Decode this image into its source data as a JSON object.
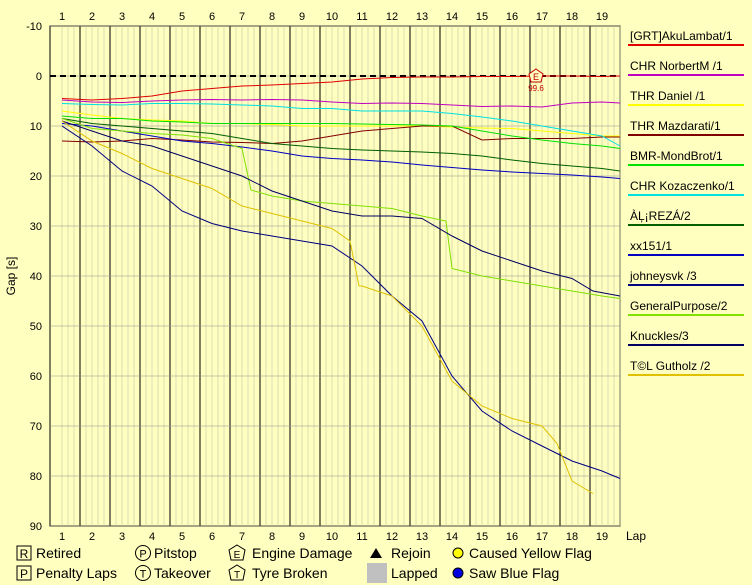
{
  "chart_data": {
    "type": "line",
    "ylabel": "Gap [s]",
    "xlabel": "Lap",
    "x_ticks": [
      1,
      2,
      3,
      4,
      5,
      6,
      7,
      8,
      9,
      10,
      11,
      12,
      13,
      14,
      15,
      16,
      17,
      18,
      19
    ],
    "ylim": [
      -10,
      90
    ],
    "y_ticks": [
      -10,
      0,
      10,
      20,
      30,
      40,
      50,
      60,
      70,
      80,
      90
    ],
    "grid": true,
    "legend_position": "right",
    "series": [
      {
        "name": "[GRT]AkuLambat/1",
        "color": "#e00000",
        "points": [
          [
            1,
            4.5
          ],
          [
            2,
            4.8
          ],
          [
            3,
            4.5
          ],
          [
            4,
            4
          ],
          [
            5,
            3
          ],
          [
            6,
            2.5
          ],
          [
            7,
            2
          ],
          [
            8,
            1.8
          ],
          [
            9,
            1.5
          ],
          [
            10,
            1.2
          ],
          [
            11,
            0.6
          ],
          [
            12,
            0.3
          ],
          [
            13,
            0.2
          ],
          [
            14,
            0.2
          ],
          [
            15,
            0.1
          ],
          [
            16,
            0.1
          ],
          [
            17,
            0
          ],
          [
            18,
            0
          ],
          [
            19,
            0.1
          ],
          [
            19.6,
            0
          ]
        ]
      },
      {
        "name": "CHR NorbertM /1",
        "color": "#c000c0",
        "points": [
          [
            1,
            4.8
          ],
          [
            2,
            5.2
          ],
          [
            3,
            5.3
          ],
          [
            4,
            5
          ],
          [
            5,
            4.8
          ],
          [
            6,
            4.7
          ],
          [
            7,
            4.8
          ],
          [
            8,
            4.7
          ],
          [
            9,
            4.8
          ],
          [
            10,
            5.2
          ],
          [
            11,
            5.5
          ],
          [
            12,
            5.4
          ],
          [
            13,
            5.5
          ],
          [
            14,
            5.8
          ],
          [
            15,
            6.1
          ],
          [
            16,
            6
          ],
          [
            17,
            6.2
          ],
          [
            18,
            5.4
          ],
          [
            19,
            5.2
          ],
          [
            19.6,
            5.4
          ]
        ]
      },
      {
        "name": "THR Daniel /1",
        "color": "#ffff00",
        "points": [
          [
            1,
            7
          ],
          [
            2,
            7.8
          ],
          [
            3,
            8.5
          ],
          [
            4,
            8.8
          ],
          [
            5,
            9
          ],
          [
            6,
            9.5
          ],
          [
            7,
            9.5
          ],
          [
            8,
            9.7
          ],
          [
            9,
            10
          ],
          [
            10,
            10
          ],
          [
            11,
            10
          ],
          [
            12,
            10
          ],
          [
            13,
            10
          ],
          [
            14,
            10.2
          ],
          [
            15,
            10.4
          ],
          [
            16,
            10.5
          ],
          [
            17,
            11
          ],
          [
            18,
            11.5
          ],
          [
            19,
            12
          ],
          [
            19.6,
            12
          ]
        ]
      },
      {
        "name": "THR Mazdarati/1",
        "color": "#800000",
        "points": [
          [
            1,
            13
          ],
          [
            2,
            13.2
          ],
          [
            3,
            13
          ],
          [
            4,
            12.5
          ],
          [
            5,
            12.8
          ],
          [
            6,
            13.2
          ],
          [
            7,
            13.3
          ],
          [
            8,
            13.5
          ],
          [
            9,
            13
          ],
          [
            10,
            12
          ],
          [
            11,
            11
          ],
          [
            12,
            10.5
          ],
          [
            13,
            10
          ],
          [
            14,
            10
          ],
          [
            15,
            12.8
          ],
          [
            16,
            12.5
          ],
          [
            17,
            12.5
          ],
          [
            18,
            12.5
          ],
          [
            19,
            12.2
          ],
          [
            19.6,
            12.2
          ]
        ]
      },
      {
        "name": "BMR-MondBrot/1",
        "color": "#00e000",
        "points": [
          [
            1,
            8
          ],
          [
            2,
            8.5
          ],
          [
            3,
            8.5
          ],
          [
            4,
            9
          ],
          [
            5,
            9.2
          ],
          [
            6,
            9.5
          ],
          [
            7,
            9.5
          ],
          [
            8,
            9.5
          ],
          [
            9,
            9.5
          ],
          [
            10,
            9.5
          ],
          [
            11,
            9.6
          ],
          [
            12,
            9.7
          ],
          [
            13,
            9.8
          ],
          [
            14,
            10
          ],
          [
            15,
            11
          ],
          [
            16,
            12
          ],
          [
            17,
            12.8
          ],
          [
            18,
            13.5
          ],
          [
            19,
            14
          ],
          [
            19.6,
            14.5
          ]
        ]
      },
      {
        "name": "CHR Kozaczenko/1",
        "color": "#00e0e0",
        "points": [
          [
            1,
            5.5
          ],
          [
            2,
            5.7
          ],
          [
            3,
            5.8
          ],
          [
            4,
            5.5
          ],
          [
            5,
            5.5
          ],
          [
            6,
            5.6
          ],
          [
            7,
            5.8
          ],
          [
            8,
            6
          ],
          [
            9,
            6.5
          ],
          [
            10,
            6.5
          ],
          [
            11,
            7
          ],
          [
            12,
            7
          ],
          [
            13,
            7
          ],
          [
            14,
            7.5
          ],
          [
            15,
            8.2
          ],
          [
            16,
            9
          ],
          [
            17,
            10
          ],
          [
            18,
            11
          ],
          [
            19,
            12
          ],
          [
            19.6,
            14
          ]
        ]
      },
      {
        "name": "ÀĻ¡REZÁ/2",
        "color": "#006000",
        "points": [
          [
            1,
            8.5
          ],
          [
            2,
            9.5
          ],
          [
            3,
            10
          ],
          [
            4,
            10.5
          ],
          [
            5,
            11
          ],
          [
            6,
            11.5
          ],
          [
            7,
            12.5
          ],
          [
            8,
            13.5
          ],
          [
            9,
            14
          ],
          [
            10,
            14.5
          ],
          [
            11,
            14.8
          ],
          [
            12,
            15
          ],
          [
            13,
            15.2
          ],
          [
            14,
            15.5
          ],
          [
            15,
            16
          ],
          [
            16,
            16.8
          ],
          [
            17,
            17.5
          ],
          [
            18,
            18
          ],
          [
            19,
            18.5
          ],
          [
            19.6,
            19
          ]
        ]
      },
      {
        "name": "xx151/1",
        "color": "#0000c0",
        "points": [
          [
            1,
            9.5
          ],
          [
            2,
            10
          ],
          [
            3,
            11
          ],
          [
            4,
            12
          ],
          [
            5,
            13
          ],
          [
            6,
            13.5
          ],
          [
            7,
            14.2
          ],
          [
            8,
            15
          ],
          [
            9,
            16
          ],
          [
            10,
            16.5
          ],
          [
            11,
            16.8
          ],
          [
            12,
            17.2
          ],
          [
            13,
            17.8
          ],
          [
            14,
            18.3
          ],
          [
            15,
            18.8
          ],
          [
            16,
            19.2
          ],
          [
            17,
            19.5
          ],
          [
            18,
            19.8
          ],
          [
            19,
            20.2
          ],
          [
            19.6,
            20.5
          ]
        ]
      },
      {
        "name": "johneysvk /3",
        "color": "#000080",
        "points": [
          [
            1,
            10
          ],
          [
            2,
            14
          ],
          [
            3,
            19
          ],
          [
            4,
            22
          ],
          [
            5,
            27
          ],
          [
            6,
            29.5
          ],
          [
            7,
            31
          ],
          [
            8,
            32
          ],
          [
            9,
            33
          ],
          [
            10,
            34
          ],
          [
            11,
            38
          ],
          [
            12,
            44
          ],
          [
            13,
            49
          ],
          [
            14,
            60
          ],
          [
            15,
            67
          ],
          [
            16,
            71
          ],
          [
            17,
            74
          ],
          [
            18,
            77
          ],
          [
            19,
            79
          ],
          [
            19.6,
            80.5
          ]
        ]
      },
      {
        "name": "GeneralPurpose/2",
        "color": "#80e000",
        "points": [
          [
            1,
            8.5
          ],
          [
            2,
            10.5
          ],
          [
            3,
            11
          ],
          [
            4,
            11.5
          ],
          [
            5,
            11.8
          ],
          [
            6,
            12.5
          ],
          [
            7,
            14.5
          ],
          [
            7.3,
            22.8
          ],
          [
            8,
            24
          ],
          [
            9,
            25
          ],
          [
            10,
            25.5
          ],
          [
            11,
            26
          ],
          [
            12,
            26.5
          ],
          [
            13,
            28
          ],
          [
            13.8,
            29
          ],
          [
            14,
            38.5
          ],
          [
            15,
            40
          ],
          [
            16,
            41
          ],
          [
            17,
            42
          ],
          [
            18,
            43
          ],
          [
            19,
            44
          ],
          [
            19.6,
            44.5
          ]
        ]
      },
      {
        "name": "Knuckles/3",
        "color": "#000060",
        "points": [
          [
            1,
            9
          ],
          [
            2,
            11
          ],
          [
            3,
            13
          ],
          [
            4,
            14
          ],
          [
            5,
            16
          ],
          [
            6,
            18
          ],
          [
            7,
            20
          ],
          [
            8,
            23
          ],
          [
            9,
            25
          ],
          [
            10,
            27
          ],
          [
            11,
            28
          ],
          [
            12,
            28
          ],
          [
            13,
            28.5
          ],
          [
            14,
            32
          ],
          [
            15,
            35
          ],
          [
            16,
            37
          ],
          [
            17,
            39
          ],
          [
            18,
            40.5
          ],
          [
            18.7,
            43
          ],
          [
            19.6,
            44
          ]
        ]
      },
      {
        "name": "T©L Gutholz /2",
        "color": "#e0c000",
        "points": [
          [
            1,
            9
          ],
          [
            2,
            13
          ],
          [
            3,
            15.5
          ],
          [
            4,
            18.5
          ],
          [
            5,
            20.5
          ],
          [
            6,
            22.5
          ],
          [
            7,
            26
          ],
          [
            8,
            27.5
          ],
          [
            9,
            29
          ],
          [
            10,
            30.5
          ],
          [
            10.6,
            33
          ],
          [
            10.9,
            42
          ],
          [
            11,
            42
          ],
          [
            12,
            44
          ],
          [
            13,
            50
          ],
          [
            14,
            61
          ],
          [
            15,
            66
          ],
          [
            16,
            68.5
          ],
          [
            17,
            70
          ],
          [
            17.5,
            73.5
          ],
          [
            18,
            81
          ],
          [
            18.7,
            83.5
          ]
        ]
      }
    ],
    "annotations": [
      {
        "type": "engine-damage",
        "symbol": "E",
        "lap": 16.8,
        "gap": 0,
        "label": "99.6"
      }
    ],
    "reference_line": {
      "gap": 0,
      "style": "dashed",
      "color": "#000000"
    }
  },
  "key": {
    "retired": {
      "symbol": "R",
      "label": "Retired"
    },
    "penalty_laps": {
      "symbol": "P",
      "label": "Penalty Laps"
    },
    "pitstop": {
      "symbol": "P",
      "label": "Pitstop"
    },
    "takeover": {
      "symbol": "T",
      "label": "Takeover"
    },
    "engine_damage": {
      "symbol": "E",
      "label": "Engine Damage"
    },
    "tyre_broken": {
      "symbol": "T",
      "label": "Tyre Broken"
    },
    "rejoin": {
      "label": "Rejoin"
    },
    "lapped": {
      "label": "Lapped"
    },
    "caused_yellow": {
      "label": "Caused Yellow Flag",
      "color": "#ffff00"
    },
    "saw_blue": {
      "label": "Saw Blue Flag",
      "color": "#0000e0"
    }
  }
}
